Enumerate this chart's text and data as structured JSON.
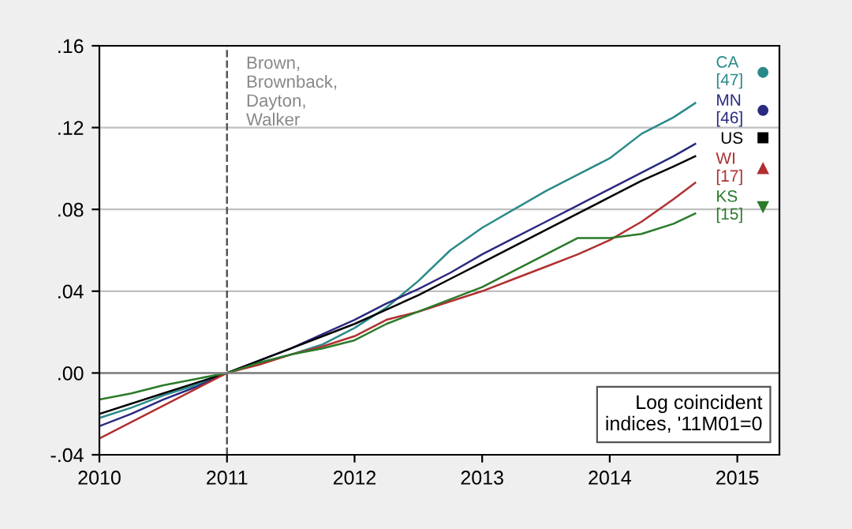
{
  "chart_data": {
    "type": "line",
    "x": [
      2010.0,
      2010.25,
      2010.5,
      2010.75,
      2011.0,
      2011.25,
      2011.5,
      2011.75,
      2012.0,
      2012.25,
      2012.5,
      2012.75,
      2013.0,
      2013.25,
      2013.5,
      2013.75,
      2014.0,
      2014.25,
      2014.5,
      2014.67
    ],
    "series": [
      {
        "name": "CA\n[47]",
        "color": "#2a8a8a",
        "values": [
          -0.022,
          -0.017,
          -0.011,
          -0.006,
          0,
          0.005,
          0.009,
          0.014,
          0.022,
          0.032,
          0.045,
          0.06,
          0.071,
          0.08,
          0.089,
          0.097,
          0.105,
          0.117,
          0.125,
          0.132
        ]
      },
      {
        "name": "MN\n[46]",
        "color": "#2a2a80",
        "values": [
          -0.026,
          -0.02,
          -0.013,
          -0.007,
          0,
          0.006,
          0.012,
          0.019,
          0.026,
          0.034,
          0.041,
          0.049,
          0.058,
          0.066,
          0.074,
          0.082,
          0.09,
          0.098,
          0.106,
          0.112
        ]
      },
      {
        "name": "US",
        "color": "#000000",
        "values": [
          -0.02,
          -0.015,
          -0.01,
          -0.005,
          0,
          0.006,
          0.012,
          0.018,
          0.024,
          0.031,
          0.038,
          0.046,
          0.054,
          0.062,
          0.07,
          0.078,
          0.086,
          0.094,
          0.101,
          0.106
        ]
      },
      {
        "name": "WI\n[17]",
        "color": "#b03030",
        "values": [
          -0.032,
          -0.024,
          -0.016,
          -0.008,
          0,
          0.004,
          0.009,
          0.013,
          0.018,
          0.026,
          0.03,
          0.035,
          0.04,
          0.046,
          0.052,
          0.058,
          0.065,
          0.074,
          0.085,
          0.093
        ]
      },
      {
        "name": "KS\n[15]",
        "color": "#2a7a2a",
        "values": [
          -0.013,
          -0.01,
          -0.006,
          -0.003,
          0,
          0.005,
          0.009,
          0.012,
          0.016,
          0.024,
          0.03,
          0.036,
          0.042,
          0.05,
          0.058,
          0.066,
          0.066,
          0.068,
          0.073,
          0.078
        ]
      }
    ],
    "xlim": [
      2010,
      2015.33
    ],
    "xticks": [
      {
        "value": 2010,
        "label": "2010"
      },
      {
        "value": 2011,
        "label": "2011"
      },
      {
        "value": 2012,
        "label": "2012"
      },
      {
        "value": 2013,
        "label": "2013"
      },
      {
        "value": 2014,
        "label": "2014"
      },
      {
        "value": 2015,
        "label": "2015"
      }
    ],
    "ylim": [
      -0.04,
      0.16
    ],
    "yticks": [
      {
        "value": -0.04,
        "label": "-.04"
      },
      {
        "value": 0,
        "label": ".00"
      },
      {
        "value": 0.04,
        "label": ".04"
      },
      {
        "value": 0.08,
        "label": ".08"
      },
      {
        "value": 0.12,
        "label": ".12"
      },
      {
        "value": 0.16,
        "label": ".16"
      }
    ],
    "grid": "y",
    "legend": "top right",
    "line_style": "solid",
    "ref_lines": [
      {
        "axis": "x",
        "value": 2011,
        "label": "Brown,\nBrownback,\nDayton,\nWalker",
        "color": "#555555",
        "line_style": "dashed"
      },
      {
        "axis": "y",
        "value": 0,
        "color": "#808080",
        "line_style": "solid"
      }
    ],
    "annotations": [
      "Log coincident\nindices, '11M01=0"
    ]
  }
}
